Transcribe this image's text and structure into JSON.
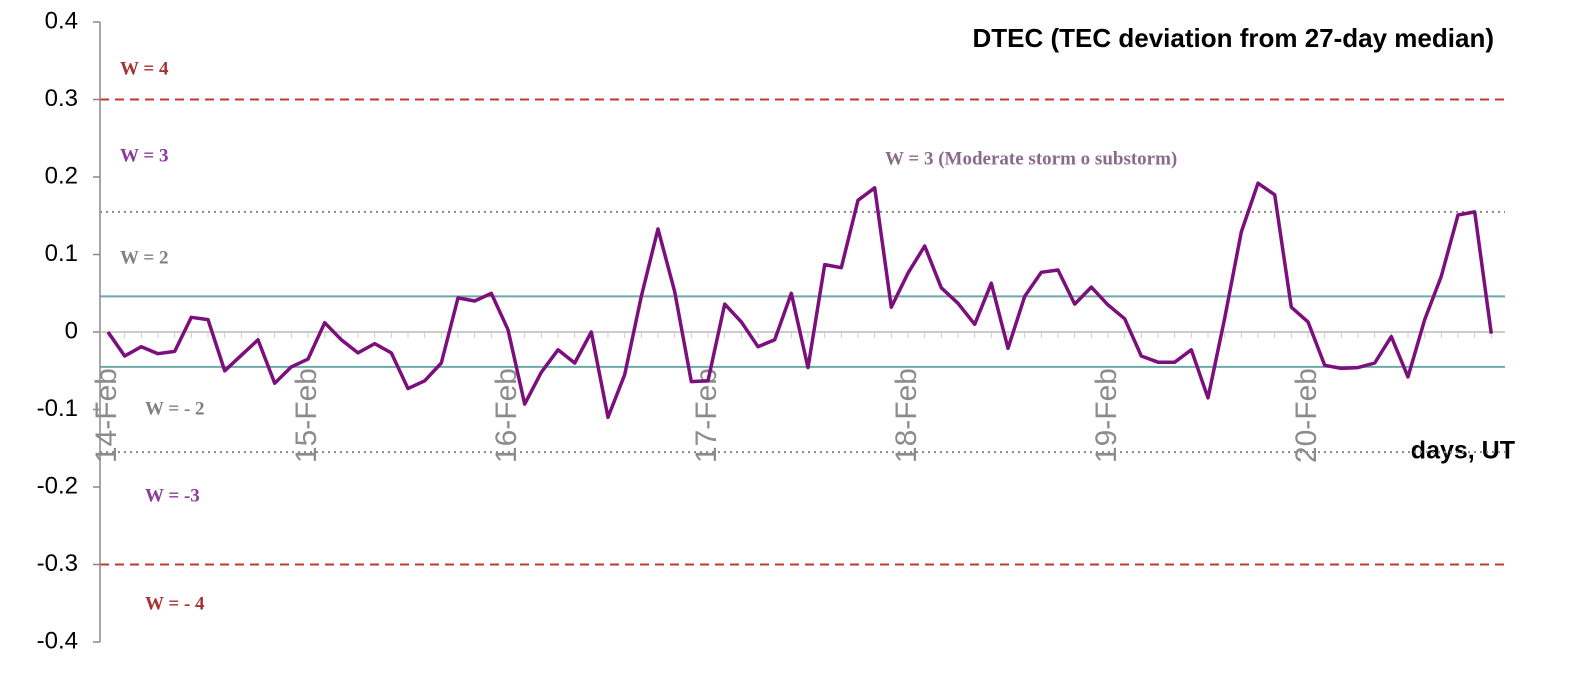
{
  "chart_data": {
    "type": "line",
    "title": "DTEC (TEC deviation from 27-day median)",
    "x_label": "days, UT",
    "categories": [
      "14-Feb",
      null,
      null,
      null,
      null,
      null,
      null,
      null,
      null,
      null,
      null,
      null,
      "15-Feb",
      null,
      null,
      null,
      null,
      null,
      null,
      null,
      null,
      null,
      null,
      null,
      "16-Feb",
      null,
      null,
      null,
      null,
      null,
      null,
      null,
      null,
      null,
      null,
      null,
      "17-Feb",
      null,
      null,
      null,
      null,
      null,
      null,
      null,
      null,
      null,
      null,
      null,
      "18-Feb",
      null,
      null,
      null,
      null,
      null,
      null,
      null,
      null,
      null,
      null,
      null,
      "19-Feb",
      null,
      null,
      null,
      null,
      null,
      null,
      null,
      null,
      null,
      null,
      null,
      "20-Feb",
      null,
      null,
      null,
      null,
      null,
      null,
      null,
      null,
      null,
      null,
      null
    ],
    "series": [
      {
        "color": "#7b0f7b",
        "values": [
          0,
          -0.031,
          -0.019,
          -0.028,
          -0.025,
          0.019,
          0.016,
          -0.05,
          -0.03,
          -0.01,
          -0.066,
          -0.045,
          -0.035,
          0.012,
          -0.01,
          -0.027,
          -0.015,
          -0.027,
          -0.073,
          -0.063,
          -0.04,
          0.044,
          0.04,
          0.05,
          0.003,
          -0.093,
          -0.052,
          -0.023,
          -0.04,
          0,
          -0.11,
          -0.055,
          0.046,
          0.133,
          0.052,
          -0.064,
          -0.063,
          0.036,
          0.013,
          -0.019,
          -0.01,
          0.05,
          -0.046,
          0.087,
          0.083,
          0.17,
          0.186,
          0.032,
          0.076,
          0.111,
          0.057,
          0.037,
          0.01,
          0.063,
          -0.021,
          0.046,
          0.077,
          0.08,
          0.036,
          0.058,
          0.035,
          0.017,
          -0.031,
          -0.039,
          -0.039,
          -0.023,
          -0.085,
          0.018,
          0.129,
          0.192,
          0.177,
          0.032,
          0.013,
          -0.043,
          -0.047,
          -0.046,
          -0.04,
          -0.006,
          -0.058,
          0.016,
          0.072,
          0.151,
          0.155,
          -0.002
        ]
      }
    ],
    "ylim": [
      -0.4,
      0.4
    ],
    "yticks": [
      0.4,
      0.3,
      0.2,
      0.1,
      0,
      -0.1,
      -0.2,
      -0.3,
      -0.4
    ],
    "reference_lines": [
      {
        "value": 0.3,
        "color": "#c0392b",
        "style": "dashed"
      },
      {
        "value": -0.3,
        "color": "#c0392b",
        "style": "dashed"
      },
      {
        "value": 0.155,
        "color": "#888888",
        "style": "dotted"
      },
      {
        "value": -0.155,
        "color": "#888888",
        "style": "dotted"
      },
      {
        "value": 0.046,
        "color": "#6fa8a8",
        "style": "solid"
      },
      {
        "value": -0.045,
        "color": "#6fa8a8",
        "style": "solid"
      }
    ],
    "annotations": [
      {
        "text": "W = 4",
        "color": "#a83232"
      },
      {
        "text": "W = 3",
        "color": "#8a3a9a"
      },
      {
        "text": "W = 2",
        "color": "#808080"
      },
      {
        "text": "W = - 2",
        "color": "#808080"
      },
      {
        "text": "W = -3",
        "color": "#8a3a9a"
      },
      {
        "text": "W = - 4",
        "color": "#a83232"
      },
      {
        "text": "W = 3 (Moderate storm o substorm)",
        "color": "#8a6a8a"
      }
    ]
  }
}
